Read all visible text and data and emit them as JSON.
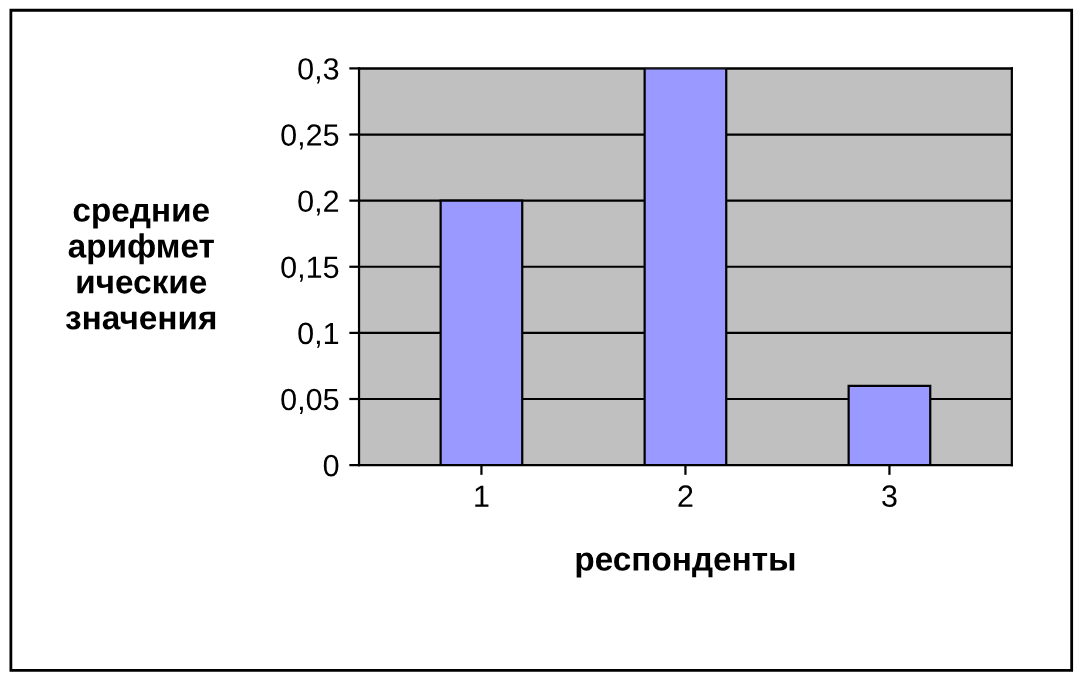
{
  "chart_data": {
    "type": "bar",
    "xlabel": "респонденты",
    "ylabel": "средние\nарифмет\nические\nзначения",
    "categories": [
      "1",
      "2",
      "3"
    ],
    "values": [
      0.2,
      0.3,
      0.06
    ],
    "color": "#9999ff",
    "ylim": [
      0,
      0.3
    ],
    "yticks": [
      {
        "value": 0,
        "label": "0"
      },
      {
        "value": 0.05,
        "label": "0,05"
      },
      {
        "value": 0.1,
        "label": "0,1"
      },
      {
        "value": 0.15,
        "label": "0,15"
      },
      {
        "value": 0.2,
        "label": "0,2"
      },
      {
        "value": 0.25,
        "label": "0,25"
      },
      {
        "value": 0.3,
        "label": "0,3"
      }
    ],
    "grid": "y"
  }
}
